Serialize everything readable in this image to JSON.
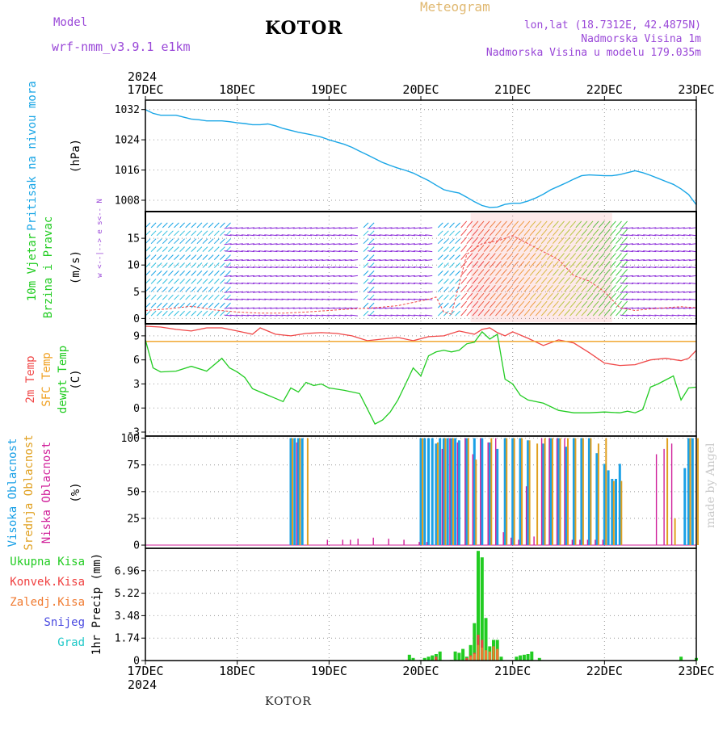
{
  "header": {
    "model_label": "Model",
    "model_name": "wrf-nmm_v3.9.1  e1km",
    "title": "KOTOR",
    "meteogram": "Meteogram",
    "lonlat": "lon,lat (18.7312E, 42.4875N)",
    "altitude": "Nadmorska Visina 1m",
    "model_altitude": "Nadmorska Visina u modelu 179.035m",
    "credit": "made by Angel",
    "footer": "KOTOR"
  },
  "colors": {
    "model": "#9a48d8",
    "meteogram": "#e0b870",
    "header_right": "#9a48d8",
    "pressure": "#1aa6e6",
    "temp": "#f04848",
    "sfc": "#f0a020",
    "dew": "#22cc22",
    "cloud_high": "#1aa0e6",
    "cloud_mid": "#e0a020",
    "cloud_low": "#d0209a",
    "precip_total": "#22cc22",
    "precip_conv": "#f04040",
    "precip_frozen": "#f07a30",
    "precip_snow": "#4848e0",
    "precip_hail": "#20c8c8"
  },
  "time_axis": {
    "year": "2024",
    "labels": [
      "17DEC",
      "18DEC",
      "19DEC",
      "20DEC",
      "21DEC",
      "22DEC",
      "23DEC"
    ],
    "hours": 144
  },
  "chart_data": [
    {
      "type": "line",
      "panel": "pressure",
      "ylabel_left": "Pritisak na nivou mora",
      "ylabel_unit": "(hPa)",
      "yticks": [
        1008,
        1016,
        1024,
        1032
      ],
      "ylim": [
        1005,
        1034.5
      ],
      "grid": true,
      "series": [
        {
          "name": "Pritisak na nivou mora",
          "color": "#1aa6e6",
          "x": [
            0,
            2,
            4,
            6,
            8,
            10,
            12,
            14,
            16,
            18,
            20,
            22,
            24,
            26,
            28,
            30,
            32,
            34,
            36,
            38,
            40,
            42,
            44,
            46,
            48,
            50,
            52,
            54,
            56,
            58,
            60,
            62,
            64,
            66,
            68,
            70,
            72,
            74,
            76,
            78,
            80,
            82,
            84,
            86,
            88,
            90,
            92,
            94,
            96,
            98,
            100,
            102,
            104,
            106,
            108,
            110,
            112,
            114,
            116,
            118,
            120,
            122,
            124,
            126,
            128,
            130,
            132,
            134,
            136,
            138,
            140,
            142,
            144
          ],
          "y": [
            1032.0,
            1031.0,
            1030.5,
            1030.5,
            1030.5,
            1030.0,
            1029.5,
            1029.3,
            1029.0,
            1029.0,
            1029.0,
            1028.8,
            1028.5,
            1028.3,
            1028.0,
            1028.0,
            1028.2,
            1027.7,
            1027.0,
            1026.5,
            1026.0,
            1025.6,
            1025.2,
            1024.7,
            1024.0,
            1023.4,
            1022.8,
            1022.0,
            1021.0,
            1020.0,
            1019.0,
            1018.0,
            1017.2,
            1016.5,
            1015.9,
            1015.2,
            1014.2,
            1013.2,
            1012.0,
            1010.8,
            1010.3,
            1009.9,
            1008.8,
            1007.6,
            1006.6,
            1006.1,
            1006.2,
            1006.9,
            1007.2,
            1007.2,
            1007.8,
            1008.6,
            1009.6,
            1010.8,
            1011.7,
            1012.6,
            1013.6,
            1014.5,
            1014.7,
            1014.6,
            1014.5,
            1014.5,
            1014.8,
            1015.3,
            1015.8,
            1015.3,
            1014.6,
            1013.8,
            1013.0,
            1012.2,
            1011.0,
            1009.5,
            1006.8
          ]
        }
      ]
    },
    {
      "type": "area",
      "panel": "wind",
      "ylabel_left": "10m Vjetar",
      "ylabel_left2": "Brzina i Pravac",
      "ylabel_unit": "(m/s)",
      "compass": "w <--|--> e   s<-- N",
      "yticks": [
        0,
        5,
        10,
        15
      ],
      "ylim": [
        -1,
        20
      ],
      "grid": true,
      "legend": "none",
      "series": [
        {
          "name": "10m Vjetar",
          "color": "#f04848",
          "x": [
            0,
            6,
            12,
            18,
            24,
            30,
            36,
            42,
            48,
            54,
            60,
            66,
            70,
            74,
            76,
            78,
            80,
            84,
            88,
            92,
            96,
            100,
            104,
            108,
            112,
            116,
            120,
            124,
            128,
            132,
            136,
            140,
            144
          ],
          "y": [
            1.5,
            1.8,
            2.3,
            1.6,
            1.2,
            1.0,
            1.0,
            1.2,
            1.5,
            1.8,
            2.0,
            2.4,
            3.0,
            3.6,
            4.0,
            1.2,
            0.8,
            12.0,
            14.0,
            14.5,
            15.5,
            14.0,
            12.5,
            11.0,
            8.0,
            7.0,
            5.0,
            2.0,
            1.5,
            1.8,
            2.0,
            2.2,
            2.0
          ]
        }
      ]
    },
    {
      "type": "line",
      "panel": "temperature",
      "ylabel_left": "2m Temp",
      "ylabel_left2": "SFC Temp",
      "ylabel_left3": "dewpt Temp",
      "ylabel_unit": "(C)",
      "yticks": [
        -3,
        0,
        3,
        6,
        9
      ],
      "ylim": [
        -3.5,
        10.5
      ],
      "grid": true,
      "series": [
        {
          "name": "2m Temp",
          "color": "#f04848",
          "x": [
            0,
            4,
            8,
            12,
            16,
            20,
            24,
            28,
            30,
            34,
            38,
            42,
            46,
            50,
            54,
            58,
            62,
            66,
            70,
            74,
            78,
            82,
            86,
            88,
            90,
            92,
            94,
            96,
            100,
            104,
            108,
            112,
            116,
            120,
            124,
            128,
            132,
            136,
            140,
            142,
            144
          ],
          "y": [
            10.2,
            10.1,
            9.8,
            9.6,
            10.0,
            10.0,
            9.6,
            9.2,
            10.0,
            9.2,
            9.0,
            9.3,
            9.4,
            9.3,
            9.0,
            8.4,
            8.6,
            8.8,
            8.4,
            8.9,
            9.0,
            9.6,
            9.2,
            9.8,
            10.0,
            9.4,
            9.0,
            9.5,
            8.7,
            7.8,
            8.5,
            8.1,
            6.9,
            5.6,
            5.3,
            5.4,
            6.0,
            6.2,
            5.9,
            6.2,
            7.2
          ]
        },
        {
          "name": "SFC Temp",
          "color": "#f0a020",
          "x": [
            0,
            144
          ],
          "y": [
            8.3,
            8.3
          ]
        },
        {
          "name": "dewpt Temp",
          "color": "#22cc22",
          "x": [
            0,
            2,
            4,
            8,
            12,
            16,
            20,
            22,
            24,
            26,
            28,
            30,
            32,
            34,
            36,
            38,
            40,
            42,
            44,
            46,
            48,
            52,
            56,
            60,
            62,
            64,
            66,
            68,
            70,
            72,
            74,
            76,
            78,
            80,
            82,
            84,
            86,
            88,
            90,
            92,
            94,
            96,
            98,
            100,
            104,
            108,
            112,
            116,
            120,
            124,
            126,
            128,
            130,
            132,
            134,
            136,
            138,
            140,
            142,
            144
          ],
          "y": [
            8.5,
            5.0,
            4.5,
            4.6,
            5.2,
            4.6,
            6.2,
            5.0,
            4.5,
            3.8,
            2.4,
            2.0,
            1.6,
            1.2,
            0.8,
            2.5,
            2.0,
            3.2,
            2.8,
            3.0,
            2.5,
            2.2,
            1.8,
            -2.0,
            -1.5,
            -0.5,
            1.0,
            3.0,
            5.0,
            4.0,
            6.5,
            7.0,
            7.2,
            7.0,
            7.2,
            8.0,
            8.2,
            9.5,
            8.6,
            9.2,
            3.6,
            3.0,
            1.6,
            1.0,
            0.6,
            -0.3,
            -0.6,
            -0.6,
            -0.5,
            -0.6,
            -0.4,
            -0.6,
            -0.2,
            2.6,
            3.0,
            3.5,
            4.0,
            1.0,
            2.5,
            2.6
          ]
        }
      ]
    },
    {
      "type": "bar",
      "panel": "clouds",
      "ylabel_left": "Visoka Oblacnost",
      "ylabel_left2": "Srednja Oblacnost",
      "ylabel_left3": "Niska Oblacnost",
      "ylabel_unit": "(%)",
      "yticks": [
        0,
        25,
        50,
        75,
        100
      ],
      "ylim": [
        -3,
        102
      ],
      "grid": true,
      "series": [
        {
          "name": "Visoka Oblacnost",
          "color": "#1aa0e6",
          "x": [
            38,
            39,
            40,
            41,
            72,
            73,
            74,
            75,
            76,
            77,
            78,
            79,
            80,
            81,
            82,
            84,
            86,
            88,
            90,
            92,
            94,
            96,
            98,
            100,
            104,
            106,
            108,
            110,
            112,
            114,
            116,
            118,
            120,
            121,
            122,
            123,
            124,
            141,
            142,
            143
          ],
          "y": [
            100,
            100,
            100,
            100,
            100,
            100,
            100,
            100,
            95,
            100,
            100,
            100,
            100,
            100,
            98,
            100,
            100,
            100,
            96,
            90,
            100,
            100,
            100,
            98,
            95,
            100,
            100,
            92,
            100,
            100,
            100,
            86,
            76,
            70,
            62,
            62,
            76,
            72,
            100,
            100
          ]
        },
        {
          "name": "Srednja Oblacnost",
          "color": "#e0a020",
          "x": [
            38,
            40,
            42,
            72,
            76,
            78,
            80,
            84,
            86,
            90,
            94,
            96,
            98,
            100,
            102,
            104,
            106,
            108,
            110,
            112,
            114,
            116,
            118,
            120,
            122,
            124,
            136,
            138,
            142,
            144
          ],
          "y": [
            100,
            100,
            100,
            100,
            96,
            100,
            100,
            100,
            80,
            100,
            100,
            100,
            100,
            98,
            95,
            100,
            100,
            100,
            100,
            100,
            100,
            100,
            95,
            100,
            60,
            60,
            100,
            25,
            100,
            100
          ]
        },
        {
          "name": "Niska Oblacnost",
          "color": "#d0209a",
          "x": [
            40,
            48,
            52,
            54,
            56,
            60,
            64,
            68,
            72,
            74,
            78,
            80,
            82,
            84,
            86,
            88,
            90,
            92,
            94,
            96,
            98,
            100,
            102,
            104,
            106,
            108,
            110,
            112,
            114,
            116,
            118,
            120,
            134,
            136,
            138
          ],
          "y": [
            96,
            5,
            5,
            5,
            6,
            7,
            6,
            5,
            3,
            3,
            90,
            100,
            96,
            100,
            85,
            100,
            96,
            100,
            12,
            7,
            5,
            55,
            8,
            100,
            100,
            100,
            100,
            5,
            5,
            5,
            5,
            5,
            85,
            90,
            95
          ]
        }
      ]
    },
    {
      "type": "bar",
      "panel": "precip",
      "ylabel_unit": "1hr Precip (mm)",
      "legend_labels": [
        "Ukupna Kisa",
        "Konvek.Kisa",
        "Zaledj.Kisa",
        "Snijeg",
        "Grad"
      ],
      "yticks": [
        0,
        1.74,
        3.48,
        5.22,
        6.96
      ],
      "ylim": [
        0,
        8.7
      ],
      "grid": true,
      "series": [
        {
          "name": "Ukupna Kisa",
          "color": "#22cc22",
          "x": [
            69,
            70,
            72,
            73,
            74,
            75,
            76,
            77,
            80,
            81,
            82,
            83,
            84,
            85,
            86,
            87,
            88,
            89,
            90,
            91,
            92,
            93,
            97,
            98,
            99,
            100,
            101,
            103,
            140,
            144
          ],
          "y": [
            0.45,
            0.2,
            0.05,
            0.2,
            0.3,
            0.4,
            0.5,
            0.7,
            0.05,
            0.7,
            0.6,
            0.9,
            0.3,
            1.2,
            2.9,
            8.5,
            8.0,
            3.3,
            1.1,
            1.6,
            1.6,
            0.3,
            0.3,
            0.4,
            0.45,
            0.5,
            0.7,
            0.2,
            0.3,
            0.2
          ]
        },
        {
          "name": "Konvek.Kisa",
          "color": "#f04040",
          "x": [
            76,
            84,
            85,
            86,
            87,
            88,
            89,
            90,
            91,
            92
          ],
          "y": [
            0.3,
            0.2,
            0.4,
            0.6,
            2.0,
            1.6,
            0.6,
            0.5,
            0.8,
            0.7
          ]
        },
        {
          "name": "Zaledj.Kisa",
          "color": "#f07a30",
          "x": [
            85,
            86,
            87,
            88,
            89,
            90,
            91,
            92
          ],
          "y": [
            0.3,
            0.5,
            1.2,
            1.0,
            0.8,
            0.7,
            1.1,
            0.9
          ]
        }
      ]
    }
  ]
}
